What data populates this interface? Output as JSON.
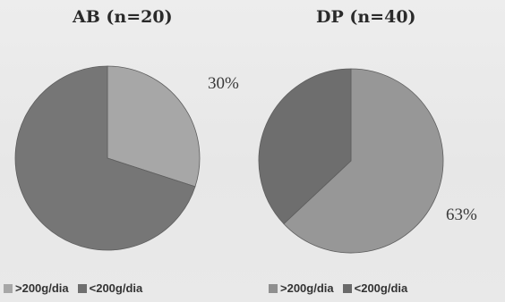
{
  "chart_data": [
    {
      "type": "pie",
      "title": "AB (n=20)",
      "labels": [
        ">200g/dia",
        "<200g/dia"
      ],
      "values": [
        30,
        70
      ],
      "slice_labels": [
        "30%",
        ""
      ],
      "colors": [
        "#a7a7a7",
        "#767676"
      ],
      "legend_position": "bottom"
    },
    {
      "type": "pie",
      "title": "DP (n=40)",
      "labels": [
        ">200g/dia",
        "<200g/dia"
      ],
      "values": [
        63,
        37
      ],
      "slice_labels": [
        "63%",
        ""
      ],
      "colors": [
        "#979797",
        "#6e6e6e"
      ],
      "legend_position": "bottom"
    }
  ]
}
